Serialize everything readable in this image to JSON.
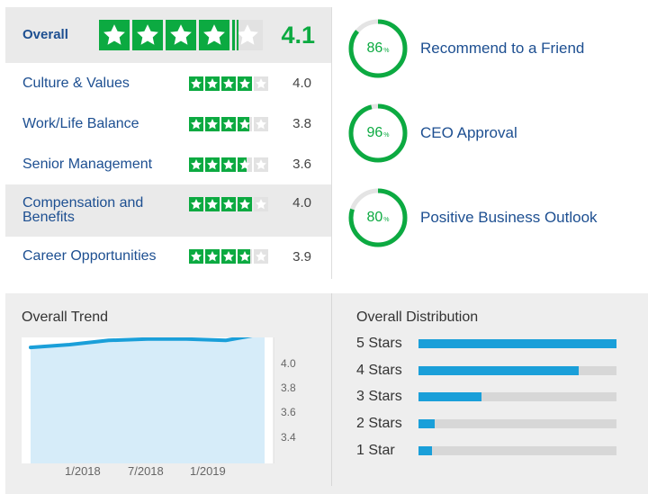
{
  "overall": {
    "label": "Overall",
    "value": "4.1",
    "rating": 4.1
  },
  "ratings": [
    {
      "label": "Culture & Values",
      "value": "4.0",
      "rating": 4.0
    },
    {
      "label": "Work/Life Balance",
      "value": "3.8",
      "rating": 3.8
    },
    {
      "label": "Senior Management",
      "value": "3.6",
      "rating": 3.6
    },
    {
      "label": "Compensation and Benefits",
      "value": "4.0",
      "rating": 4.0
    },
    {
      "label": "Career Opportunities",
      "value": "3.9",
      "rating": 3.9
    }
  ],
  "gauges": [
    {
      "value": "86",
      "unit": "%",
      "label": "Recommend to a Friend",
      "fraction": 0.86
    },
    {
      "value": "96",
      "unit": "%",
      "label": "CEO Approval",
      "fraction": 0.96
    },
    {
      "value": "80",
      "unit": "%",
      "label": "Positive Business Outlook",
      "fraction": 0.8
    }
  ],
  "trend": {
    "title": "Overall Trend",
    "y_ticks": [
      "4.0",
      "3.8",
      "3.6",
      "3.4"
    ],
    "x_ticks": [
      "1/2018",
      "7/2018",
      "1/2019"
    ]
  },
  "distribution": {
    "title": "Overall Distribution",
    "rows": [
      {
        "label": "5 Stars",
        "fraction": 1.0
      },
      {
        "label": "4 Stars",
        "fraction": 0.81
      },
      {
        "label": "3 Stars",
        "fraction": 0.32
      },
      {
        "label": "2 Stars",
        "fraction": 0.08
      },
      {
        "label": "1 Star",
        "fraction": 0.07
      }
    ]
  },
  "colors": {
    "green": "#0caa41",
    "blue_text": "#1d4f91",
    "bar_blue": "#1a9fd9"
  },
  "chart_data": {
    "type": "area",
    "title": "Overall Trend",
    "x": [
      "2017-10",
      "2018-01",
      "2018-04",
      "2018-07",
      "2018-10",
      "2019-01",
      "2019-04"
    ],
    "y": [
      4.0,
      4.02,
      4.05,
      4.06,
      4.06,
      4.05,
      4.1
    ],
    "ylim": [
      3.3,
      4.2
    ],
    "x_tick_labels": [
      "1/2018",
      "7/2018",
      "1/2019"
    ],
    "y_tick_labels": [
      "4.0",
      "3.8",
      "3.6",
      "3.4"
    ],
    "grid": false
  }
}
